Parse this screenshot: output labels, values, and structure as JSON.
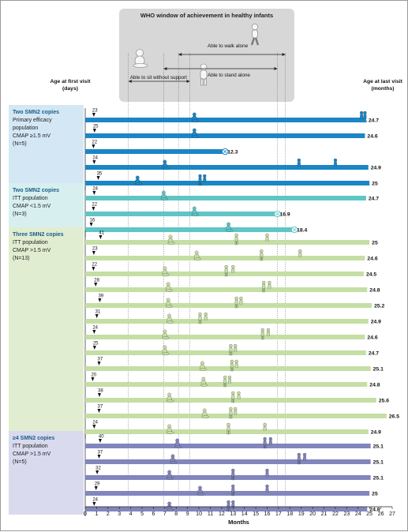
{
  "chart_data": {
    "type": "timeline",
    "title": "WHO window of achievement in healthy infants",
    "xlabel": "Months",
    "xlim": [
      0,
      27
    ],
    "x_ticks": [
      0,
      1,
      2,
      3,
      4,
      5,
      6,
      7,
      8,
      9,
      10,
      11,
      12,
      13,
      14,
      15,
      16,
      17,
      18,
      19,
      20,
      21,
      22,
      23,
      24,
      25,
      26,
      27
    ],
    "left_label": "Age at first visit (days)",
    "right_label": "Age at last visit (months)",
    "who_windows": [
      {
        "milestone": "Able to sit without support",
        "start": 3.8,
        "end": 9.2
      },
      {
        "milestone": "Able to stand alone",
        "start": 6.9,
        "end": 16.9
      },
      {
        "milestone": "Able to walk alone",
        "start": 8.2,
        "end": 17.6
      }
    ],
    "groups": [
      {
        "lines": [
          "Two SMN2 copies",
          "Primary efficacy",
          "population",
          "CMAP ≥1.5 mV",
          "(N=5)"
        ],
        "color": "#1b86c6",
        "bg": "#d4e7f4",
        "patients": [
          {
            "first_visit_days": 23,
            "last_visit_months": 24.7,
            "status": "",
            "milestones": [
              {
                "m": 9.6,
                "t": "sit"
              },
              {
                "m": 24.3,
                "t": "walk"
              },
              {
                "m": 24.6,
                "t": "walk"
              }
            ]
          },
          {
            "first_visit_days": 25,
            "last_visit_months": 24.6,
            "status": "",
            "milestones": [
              {
                "m": 9.6,
                "t": "sit"
              }
            ]
          },
          {
            "first_visit_days": 22,
            "last_visit_months": 12.3,
            "status": "died",
            "milestones": []
          },
          {
            "first_visit_days": 24,
            "last_visit_months": 24.9,
            "status": "",
            "milestones": [
              {
                "m": 7.0,
                "t": "sit"
              },
              {
                "m": 18.8,
                "t": "walk"
              },
              {
                "m": 22.0,
                "t": "walk"
              }
            ]
          },
          {
            "first_visit_days": 35,
            "last_visit_months": 25.0,
            "status": "",
            "milestones": [
              {
                "m": 4.6,
                "t": "sit"
              },
              {
                "m": 10.1,
                "t": "stand"
              },
              {
                "m": 10.5,
                "t": "walk"
              }
            ]
          }
        ]
      },
      {
        "lines": [
          "Two SMN2 copies",
          "ITT population",
          "CMAP <1.5 mV",
          "(N=3)"
        ],
        "color": "#5fc5c5",
        "bg": "#d8efef",
        "patients": [
          {
            "first_visit_days": 24,
            "last_visit_months": 24.7,
            "status": "",
            "milestones": [
              {
                "m": 6.9,
                "t": "sit"
              }
            ]
          },
          {
            "first_visit_days": 22,
            "last_visit_months": 16.9,
            "status": "died",
            "milestones": [
              {
                "m": 9.6,
                "t": "sit"
              }
            ]
          },
          {
            "first_visit_days": 16,
            "last_visit_months": 18.4,
            "status": "died",
            "milestones": [
              {
                "m": 12.6,
                "t": "sit"
              }
            ]
          }
        ]
      },
      {
        "lines": [
          "Three SMN2 copies",
          "ITT population",
          "CMAP >1.5 mV",
          "(N=13)"
        ],
        "color": "#c5dea4",
        "bg": "#e1edd0",
        "patients": [
          {
            "first_visit_days": 41,
            "last_visit_months": 25.0,
            "status": "",
            "milestones": [
              {
                "m": 7.5,
                "t": "sit"
              },
              {
                "m": 13.3,
                "t": "stand"
              },
              {
                "m": 16.0,
                "t": "walk"
              }
            ]
          },
          {
            "first_visit_days": 23,
            "last_visit_months": 24.6,
            "status": "",
            "milestones": [
              {
                "m": 9.8,
                "t": "sit"
              },
              {
                "m": 15.5,
                "t": "stand"
              },
              {
                "m": 18.9,
                "t": "walk"
              }
            ]
          },
          {
            "first_visit_days": 22,
            "last_visit_months": 24.5,
            "status": "",
            "milestones": [
              {
                "m": 7.0,
                "t": "sit"
              },
              {
                "m": 12.4,
                "t": "stand"
              },
              {
                "m": 13.0,
                "t": "walk"
              }
            ]
          },
          {
            "first_visit_days": 28,
            "last_visit_months": 24.8,
            "status": "",
            "milestones": [
              {
                "m": 7.3,
                "t": "sit"
              },
              {
                "m": 15.7,
                "t": "stand"
              },
              {
                "m": 16.2,
                "t": "walk"
              }
            ]
          },
          {
            "first_visit_days": 39,
            "last_visit_months": 25.2,
            "status": "",
            "milestones": [
              {
                "m": 7.3,
                "t": "sit"
              },
              {
                "m": 13.3,
                "t": "stand"
              },
              {
                "m": 13.7,
                "t": "walk"
              }
            ]
          },
          {
            "first_visit_days": 31,
            "last_visit_months": 24.9,
            "status": "",
            "milestones": [
              {
                "m": 7.4,
                "t": "sit"
              },
              {
                "m": 10.1,
                "t": "stand"
              },
              {
                "m": 10.6,
                "t": "walk"
              }
            ]
          },
          {
            "first_visit_days": 24,
            "last_visit_months": 24.6,
            "status": "",
            "milestones": [
              {
                "m": 7.0,
                "t": "sit"
              },
              {
                "m": 15.6,
                "t": "stand"
              },
              {
                "m": 16.1,
                "t": "walk"
              }
            ]
          },
          {
            "first_visit_days": 25,
            "last_visit_months": 24.7,
            "status": "",
            "milestones": [
              {
                "m": 7.0,
                "t": "sit"
              },
              {
                "m": 12.8,
                "t": "stand"
              },
              {
                "m": 13.2,
                "t": "walk"
              }
            ]
          },
          {
            "first_visit_days": 37,
            "last_visit_months": 25.1,
            "status": "",
            "milestones": [
              {
                "m": 10.3,
                "t": "sit"
              },
              {
                "m": 12.9,
                "t": "stand"
              },
              {
                "m": 13.3,
                "t": "walk"
              }
            ]
          },
          {
            "first_visit_days": 20,
            "last_visit_months": 24.8,
            "status": "",
            "milestones": [
              {
                "m": 10.4,
                "t": "sit"
              },
              {
                "m": 12.3,
                "t": "stand"
              },
              {
                "m": 12.7,
                "t": "walk"
              }
            ]
          },
          {
            "first_visit_days": 38,
            "last_visit_months": 25.6,
            "status": "",
            "milestones": [
              {
                "m": 7.4,
                "t": "sit"
              },
              {
                "m": 13.0,
                "t": "stand"
              },
              {
                "m": 13.5,
                "t": "walk"
              }
            ]
          },
          {
            "first_visit_days": 37,
            "last_visit_months": 26.5,
            "status": "",
            "milestones": [
              {
                "m": 10.5,
                "t": "sit"
              },
              {
                "m": 12.8,
                "t": "stand"
              },
              {
                "m": 13.2,
                "t": "walk"
              }
            ]
          },
          {
            "first_visit_days": 24,
            "last_visit_months": 24.9,
            "status": "",
            "milestones": [
              {
                "m": 7.4,
                "t": "sit"
              },
              {
                "m": 12.6,
                "t": "stand"
              },
              {
                "m": 15.8,
                "t": "walk"
              }
            ]
          }
        ]
      },
      {
        "lines": [
          "≥4 SMN2 copies",
          "ITT population",
          "CMAP >1.5 mV",
          "(N=5)"
        ],
        "color": "#8186bd",
        "bg": "#d9daed",
        "patients": [
          {
            "first_visit_days": 40,
            "last_visit_months": 25.1,
            "status": "",
            "milestones": [
              {
                "m": 8.1,
                "t": "sit"
              },
              {
                "m": 15.8,
                "t": "stand"
              },
              {
                "m": 16.3,
                "t": "walk"
              }
            ]
          },
          {
            "first_visit_days": 37,
            "last_visit_months": 25.1,
            "status": "",
            "milestones": [
              {
                "m": 7.7,
                "t": "sit"
              },
              {
                "m": 18.8,
                "t": "stand"
              },
              {
                "m": 19.3,
                "t": "walk"
              }
            ]
          },
          {
            "first_visit_days": 32,
            "last_visit_months": 25.1,
            "status": "",
            "milestones": [
              {
                "m": 7.4,
                "t": "sit"
              },
              {
                "m": 13.0,
                "t": "stand"
              },
              {
                "m": 16.0,
                "t": "walk"
              }
            ]
          },
          {
            "first_visit_days": 29,
            "last_visit_months": 25.0,
            "status": "",
            "milestones": [
              {
                "m": 10.1,
                "t": "sit"
              },
              {
                "m": 13.0,
                "t": "stand"
              },
              {
                "m": 16.0,
                "t": "walk"
              }
            ]
          },
          {
            "first_visit_days": 24,
            "last_visit_months": 24.8,
            "status": "",
            "milestones": [
              {
                "m": 7.4,
                "t": "sit"
              },
              {
                "m": 12.6,
                "t": "stand"
              },
              {
                "m": 13.0,
                "t": "walk"
              }
            ]
          }
        ]
      }
    ]
  }
}
